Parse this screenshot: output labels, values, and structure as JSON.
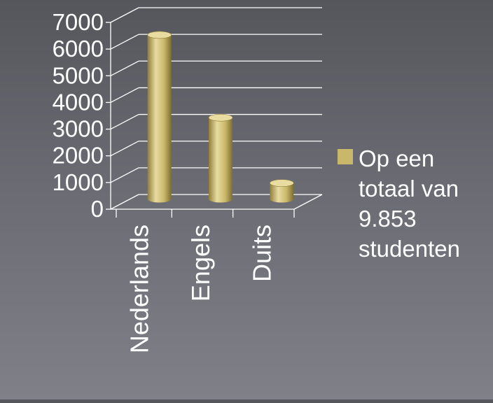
{
  "chart_data": {
    "type": "bar",
    "title": "",
    "xlabel": "",
    "ylabel": "",
    "categories": [
      "Nederlands",
      "Engels",
      "Duits"
    ],
    "series": [
      {
        "name": "Op een totaal van 9.853 studenten",
        "values": [
          6150,
          3050,
          600
        ]
      }
    ],
    "ylim": [
      0,
      7000
    ],
    "yticks": [
      "0",
      "1000",
      "2000",
      "3000",
      "4000",
      "5000",
      "6000",
      "7000"
    ],
    "grid": true,
    "legend_position": "right",
    "bar_style": "3d-cylinder",
    "colors": {
      "bar": "#c9b86a",
      "bar_dark": "#8f7e3a",
      "bar_light": "#e8dca0",
      "grid": "#ffffff"
    }
  },
  "legend": {
    "label": "Op een\ntotaal van\n9.853\nstudenten"
  }
}
